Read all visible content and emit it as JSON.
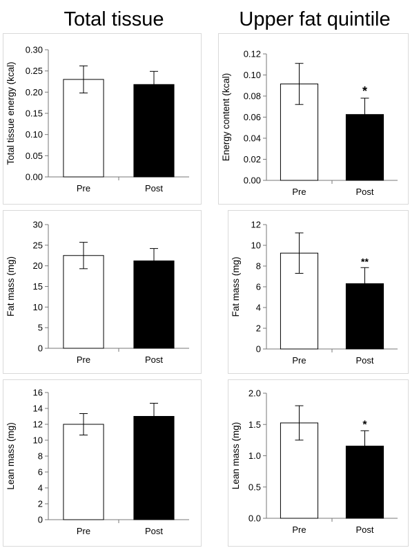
{
  "headers": {
    "left": "Total tissue",
    "right": "Upper fat quintile"
  },
  "chart_data": [
    {
      "type": "bar",
      "categories": [
        "Pre",
        "Post"
      ],
      "values": [
        0.23,
        0.218
      ],
      "errors": [
        0.032,
        0.031
      ],
      "ylabel": "Total tissue energy (kcal)",
      "ylim": [
        0,
        0.3
      ],
      "ticks": [
        "0.00",
        "0.05",
        "0.10",
        "0.15",
        "0.20",
        "0.25",
        "0.30"
      ],
      "annotations": [
        "",
        ""
      ],
      "bar_colors": [
        "#ffffff",
        "#000000"
      ]
    },
    {
      "type": "bar",
      "categories": [
        "Pre",
        "Post"
      ],
      "values": [
        0.0915,
        0.0625
      ],
      "errors": [
        0.0195,
        0.0155
      ],
      "ylabel": "Energy content (kcal)",
      "ylim": [
        0,
        0.12
      ],
      "ticks": [
        "0.00",
        "0.02",
        "0.04",
        "0.06",
        "0.08",
        "0.10",
        "0.12"
      ],
      "annotations": [
        "",
        "*"
      ],
      "bar_colors": [
        "#ffffff",
        "#000000"
      ]
    },
    {
      "type": "bar",
      "categories": [
        "Pre",
        "Post"
      ],
      "values": [
        22.5,
        21.2
      ],
      "errors": [
        3.2,
        3.0
      ],
      "ylabel": "Fat mass (mg)",
      "ylim": [
        0,
        30
      ],
      "ticks": [
        "0",
        "5",
        "10",
        "15",
        "20",
        "25",
        "30"
      ],
      "annotations": [
        "",
        ""
      ],
      "bar_colors": [
        "#ffffff",
        "#000000"
      ]
    },
    {
      "type": "bar",
      "categories": [
        "Pre",
        "Post"
      ],
      "values": [
        9.25,
        6.3
      ],
      "errors": [
        1.95,
        1.55
      ],
      "ylabel": "Fat mass (mg)",
      "ylim": [
        0,
        12
      ],
      "ticks": [
        "0",
        "2",
        "4",
        "6",
        "8",
        "10",
        "12"
      ],
      "annotations": [
        "",
        "**"
      ],
      "bar_colors": [
        "#ffffff",
        "#000000"
      ]
    },
    {
      "type": "bar",
      "categories": [
        "Pre",
        "Post"
      ],
      "values": [
        12.0,
        13.0
      ],
      "errors": [
        1.35,
        1.65
      ],
      "ylabel": "Lean mass (mg)",
      "ylim": [
        0,
        16
      ],
      "ticks": [
        "0",
        "2",
        "4",
        "6",
        "8",
        "10",
        "12",
        "14",
        "16"
      ],
      "annotations": [
        "",
        ""
      ],
      "bar_colors": [
        "#ffffff",
        "#000000"
      ]
    },
    {
      "type": "bar",
      "categories": [
        "Pre",
        "Post"
      ],
      "values": [
        1.525,
        1.155
      ],
      "errors": [
        0.275,
        0.245
      ],
      "ylabel": "Lean mass (mg)",
      "ylim": [
        0,
        2
      ],
      "ticks": [
        "0.0",
        "0.5",
        "1.0",
        "1.5",
        "2.0"
      ],
      "annotations": [
        "",
        "*"
      ],
      "bar_colors": [
        "#ffffff",
        "#000000"
      ]
    }
  ]
}
